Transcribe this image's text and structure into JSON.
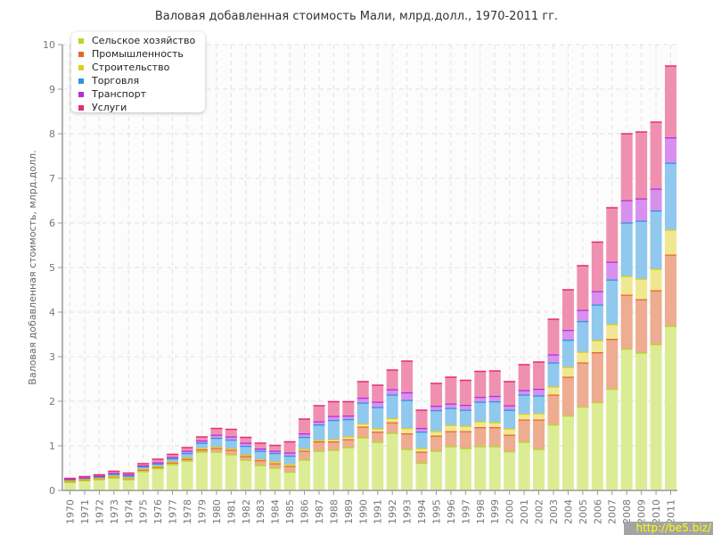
{
  "chart_data": {
    "type": "bar",
    "stacked": true,
    "title": "Валовая добавленная стоимость Мали, млрд.долл., 1970-2011 гг.",
    "xlabel": "",
    "ylabel": "Валовая добавленная стоимость, млрд.долл.",
    "ylim": [
      0,
      10
    ],
    "yticks": [
      "0",
      "1",
      "2",
      "3",
      "4",
      "5",
      "6",
      "7",
      "8",
      "9",
      "10"
    ],
    "grid": true,
    "legend_position": "top-left",
    "categories": [
      "1970",
      "1971",
      "1972",
      "1973",
      "1974",
      "1975",
      "1976",
      "1977",
      "1978",
      "1979",
      "1980",
      "1981",
      "1982",
      "1983",
      "1984",
      "1985",
      "1986",
      "1987",
      "1988",
      "1989",
      "1990",
      "1991",
      "1992",
      "1993",
      "1994",
      "1995",
      "1996",
      "1997",
      "1998",
      "1999",
      "2000",
      "2001",
      "2002",
      "2003",
      "2004",
      "2005",
      "2006",
      "2007",
      "2008",
      "2009",
      "2010",
      "2011"
    ],
    "series": [
      {
        "name": "Сельское хозяйство",
        "color": "#b5d82a",
        "fill": "#dcec94",
        "values": [
          0.19,
          0.23,
          0.25,
          0.29,
          0.25,
          0.43,
          0.5,
          0.59,
          0.67,
          0.87,
          0.87,
          0.81,
          0.69,
          0.57,
          0.51,
          0.42,
          0.69,
          0.89,
          0.91,
          0.97,
          1.19,
          1.09,
          1.29,
          0.93,
          0.62,
          0.89,
          0.99,
          0.95,
          0.99,
          0.99,
          0.88,
          1.09,
          0.93,
          1.48,
          1.68,
          1.88,
          1.98,
          2.28,
          3.18,
          3.09,
          3.28,
          3.69
        ]
      },
      {
        "name": "Промышленность",
        "color": "#e8662a",
        "fill": "#eeac90",
        "values": [
          0.03,
          0.02,
          0.03,
          0.03,
          0.03,
          0.04,
          0.03,
          0.04,
          0.04,
          0.05,
          0.08,
          0.1,
          0.08,
          0.11,
          0.1,
          0.13,
          0.2,
          0.21,
          0.19,
          0.18,
          0.24,
          0.23,
          0.24,
          0.35,
          0.25,
          0.34,
          0.34,
          0.38,
          0.43,
          0.43,
          0.37,
          0.5,
          0.66,
          0.67,
          0.87,
          0.99,
          1.12,
          1.12,
          1.21,
          1.2,
          1.21,
          1.6
        ]
      },
      {
        "name": "Строительство",
        "color": "#e0cc20",
        "fill": "#f0e890",
        "values": [
          0.01,
          0.01,
          0.01,
          0.01,
          0.01,
          0.02,
          0.02,
          0.02,
          0.03,
          0.03,
          0.03,
          0.03,
          0.03,
          0.02,
          0.04,
          0.04,
          0.04,
          0.03,
          0.05,
          0.06,
          0.07,
          0.07,
          0.09,
          0.12,
          0.08,
          0.1,
          0.14,
          0.12,
          0.13,
          0.11,
          0.14,
          0.13,
          0.14,
          0.18,
          0.22,
          0.24,
          0.27,
          0.33,
          0.42,
          0.46,
          0.48,
          0.56
        ]
      },
      {
        "name": "Торговля",
        "color": "#2a96dc",
        "fill": "#90c8ee",
        "values": [
          0.02,
          0.02,
          0.02,
          0.04,
          0.04,
          0.05,
          0.05,
          0.07,
          0.1,
          0.12,
          0.2,
          0.2,
          0.2,
          0.19,
          0.19,
          0.19,
          0.27,
          0.35,
          0.43,
          0.39,
          0.47,
          0.48,
          0.53,
          0.63,
          0.37,
          0.47,
          0.38,
          0.36,
          0.44,
          0.47,
          0.42,
          0.43,
          0.4,
          0.54,
          0.61,
          0.69,
          0.8,
          1.0,
          1.2,
          1.3,
          1.31,
          1.5
        ]
      },
      {
        "name": "Транспорт",
        "color": "#b030e0",
        "fill": "#d890ee",
        "values": [
          0.01,
          0.01,
          0.02,
          0.02,
          0.03,
          0.02,
          0.03,
          0.03,
          0.05,
          0.05,
          0.07,
          0.07,
          0.07,
          0.05,
          0.05,
          0.07,
          0.08,
          0.07,
          0.09,
          0.08,
          0.11,
          0.12,
          0.12,
          0.17,
          0.08,
          0.1,
          0.1,
          0.11,
          0.11,
          0.12,
          0.1,
          0.1,
          0.15,
          0.18,
          0.22,
          0.25,
          0.3,
          0.4,
          0.5,
          0.5,
          0.49,
          0.57
        ]
      },
      {
        "name": "Услуги",
        "color": "#e82a78",
        "fill": "#f090b0",
        "values": [
          0.02,
          0.03,
          0.03,
          0.05,
          0.04,
          0.05,
          0.08,
          0.07,
          0.08,
          0.09,
          0.15,
          0.17,
          0.13,
          0.13,
          0.13,
          0.25,
          0.33,
          0.36,
          0.33,
          0.32,
          0.37,
          0.38,
          0.44,
          0.71,
          0.41,
          0.51,
          0.6,
          0.56,
          0.58,
          0.57,
          0.54,
          0.58,
          0.61,
          0.8,
          0.91,
          1.0,
          1.11,
          1.22,
          1.5,
          1.5,
          1.5,
          1.61
        ]
      }
    ]
  },
  "watermark": "http://be5.biz/"
}
